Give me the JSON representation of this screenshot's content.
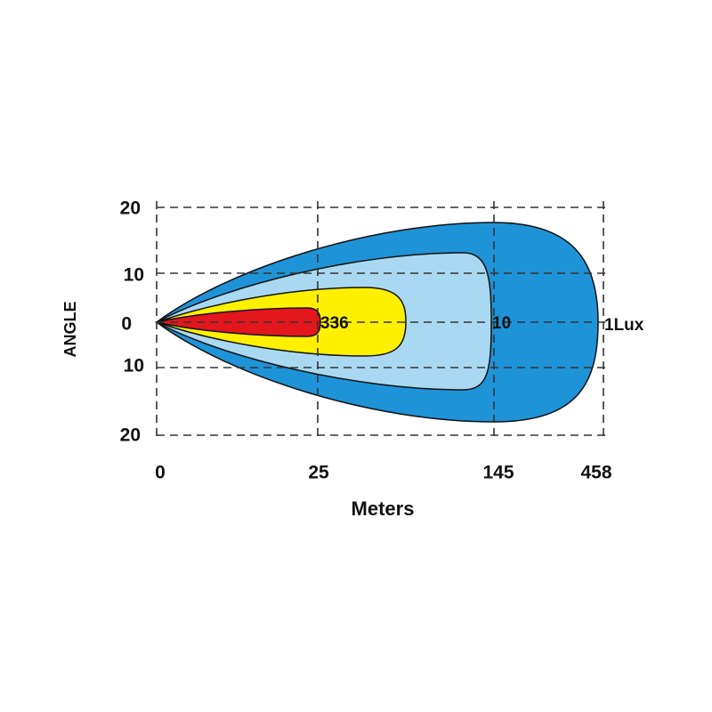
{
  "y_axis": {
    "label": "ANGLE",
    "ticks": [
      20,
      10,
      0,
      10,
      20
    ]
  },
  "x_axis": {
    "label": "Meters",
    "ticks": [
      0,
      25,
      145,
      458
    ]
  },
  "contours": [
    {
      "label": "336"
    },
    {
      "label": "10"
    },
    {
      "label": "1Lux"
    }
  ]
}
